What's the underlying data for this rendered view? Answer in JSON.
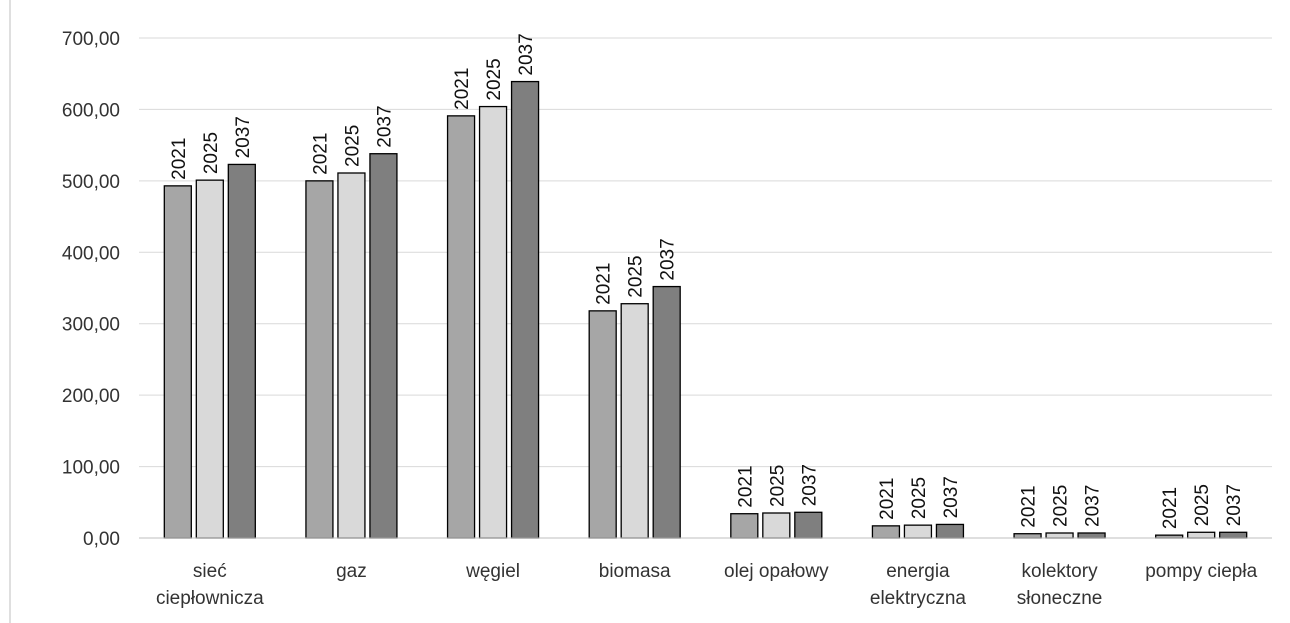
{
  "colors": {
    "bar_2021": "#a6a6a6",
    "bar_2025": "#d9d9d9",
    "bar_2037": "#7f7f7f",
    "gridline": "#d9d9d9",
    "bar_outline": "#000000",
    "axis": "#bfbfbf"
  },
  "chart_data": {
    "type": "bar",
    "title": "",
    "xlabel": "",
    "ylabel": "",
    "ylim": [
      0,
      700
    ],
    "yticks": [
      "0,00",
      "100,00",
      "200,00",
      "300,00",
      "400,00",
      "500,00",
      "600,00",
      "700,00"
    ],
    "grid": true,
    "legend": "none",
    "categories": [
      [
        "sieć",
        "ciepłownicza"
      ],
      [
        "gaz"
      ],
      [
        "węgiel"
      ],
      [
        "biomasa"
      ],
      [
        "olej opałowy"
      ],
      [
        "energia",
        "elektryczna"
      ],
      [
        "kolektory",
        "słoneczne"
      ],
      [
        "pompy ciepła"
      ]
    ],
    "series": [
      {
        "name": "2021",
        "values": [
          493,
          500,
          591,
          318,
          34,
          17,
          6,
          4
        ]
      },
      {
        "name": "2025",
        "values": [
          501,
          511,
          604,
          328,
          35,
          18,
          7,
          8
        ]
      },
      {
        "name": "2037",
        "values": [
          523,
          538,
          639,
          352,
          36,
          19,
          7,
          8
        ]
      }
    ],
    "data_labels": "series name"
  }
}
